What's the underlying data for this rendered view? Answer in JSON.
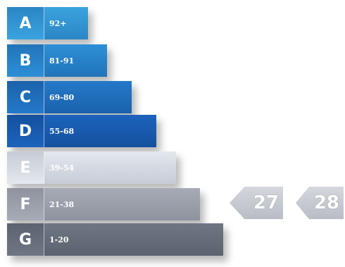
{
  "bands": [
    {
      "letter": "A",
      "range": "92+",
      "color": "#3aa3df",
      "dark": "#2b86c4"
    },
    {
      "letter": "B",
      "range": "81-91",
      "color": "#2d8fd6",
      "dark": "#2274b9"
    },
    {
      "letter": "C",
      "range": "69-80",
      "color": "#2479c9",
      "dark": "#1b62ab"
    },
    {
      "letter": "D",
      "range": "55-68",
      "color": "#1c63bd",
      "dark": "#15519e"
    },
    {
      "letter": "E",
      "range": "39-54",
      "color": "#e4e8ee",
      "dark": "#c6ccd6"
    },
    {
      "letter": "F",
      "range": "21-38",
      "color": "#a6abb6",
      "dark": "#8e939e"
    },
    {
      "letter": "G",
      "range": "1-20",
      "color": "#6f7684",
      "dark": "#5c6370"
    }
  ],
  "current_rating": {
    "value": "27",
    "color": "#b8bcc4"
  },
  "potential_rating": {
    "value": "28",
    "color": "#b8bcc4"
  }
}
